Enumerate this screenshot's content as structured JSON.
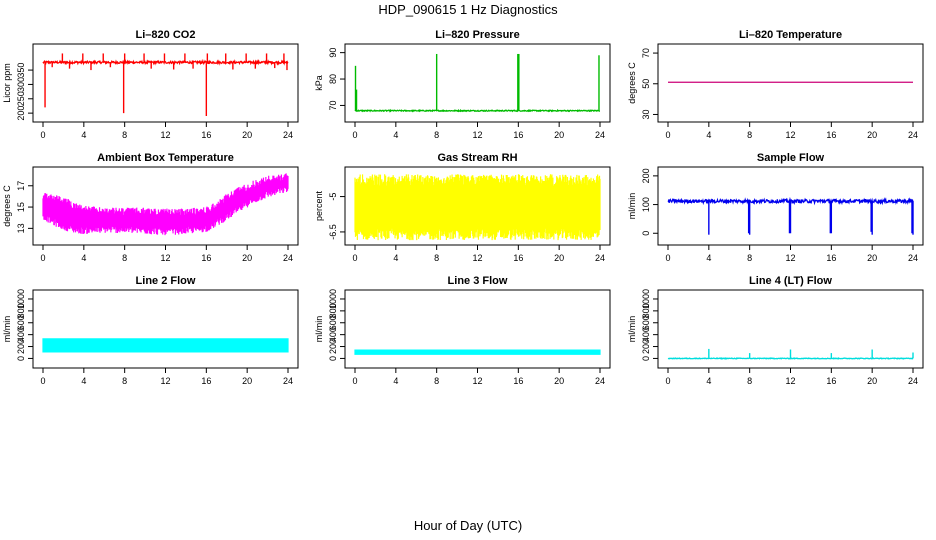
{
  "figure": {
    "title": "HDP_090615  1 Hz Diagnostics",
    "xlabel": "Hour of Day (UTC)"
  },
  "chart_data": [
    {
      "type": "line",
      "style": "spiky",
      "title": "Li–820 CO2",
      "ylabel": "Licor ppm",
      "color": "#ff0000",
      "xlim": [
        0,
        24
      ],
      "xticks": [
        0,
        4,
        8,
        12,
        16,
        20,
        24
      ],
      "ylim": [
        190,
        420
      ],
      "yticks": [
        200,
        250,
        300,
        350
      ],
      "series": [
        {
          "baseline": 377,
          "noise": 4,
          "x_range": [
            0,
            24
          ],
          "spikes": [
            {
              "x": 0.2,
              "y": 220
            },
            {
              "x": 0.9,
              "y": 360
            },
            {
              "x": 1.9,
              "y": 408
            },
            {
              "x": 2.6,
              "y": 355
            },
            {
              "x": 3.9,
              "y": 408
            },
            {
              "x": 4.7,
              "y": 350
            },
            {
              "x": 5.9,
              "y": 408
            },
            {
              "x": 6.6,
              "y": 360
            },
            {
              "x": 7.9,
              "y": 200
            },
            {
              "x": 8.0,
              "y": 408
            },
            {
              "x": 9.9,
              "y": 408
            },
            {
              "x": 10.6,
              "y": 355
            },
            {
              "x": 11.9,
              "y": 408
            },
            {
              "x": 12.8,
              "y": 352
            },
            {
              "x": 13.9,
              "y": 408
            },
            {
              "x": 14.7,
              "y": 355
            },
            {
              "x": 16.0,
              "y": 190
            },
            {
              "x": 16.1,
              "y": 408
            },
            {
              "x": 17.9,
              "y": 408
            },
            {
              "x": 18.6,
              "y": 352
            },
            {
              "x": 19.9,
              "y": 408
            },
            {
              "x": 20.8,
              "y": 355
            },
            {
              "x": 21.9,
              "y": 408
            },
            {
              "x": 22.7,
              "y": 357
            },
            {
              "x": 23.6,
              "y": 408
            },
            {
              "x": 23.9,
              "y": 350
            }
          ]
        }
      ]
    },
    {
      "type": "line",
      "style": "spiky",
      "title": "Li–820 Pressure",
      "ylabel": "kPa",
      "color": "#00bb00",
      "xlim": [
        0,
        24
      ],
      "xticks": [
        0,
        4,
        8,
        12,
        16,
        20,
        24
      ],
      "ylim": [
        66,
        91
      ],
      "yticks": [
        70,
        80,
        90
      ],
      "series": [
        {
          "baseline": 68.0,
          "noise": 0.2,
          "x_range": [
            0,
            24
          ],
          "spikes": [
            {
              "x": 0.05,
              "y": 85
            },
            {
              "x": 0.15,
              "y": 76
            },
            {
              "x": 8.0,
              "y": 89.5
            },
            {
              "x": 15.95,
              "y": 89.5
            },
            {
              "x": 16.05,
              "y": 89.5
            },
            {
              "x": 23.9,
              "y": 89
            }
          ]
        }
      ]
    },
    {
      "type": "line",
      "style": "flat",
      "title": "Li–820 Temperature",
      "ylabel": "degrees C",
      "color": "#cc0077",
      "xlim": [
        0,
        24
      ],
      "xticks": [
        0,
        4,
        8,
        12,
        16,
        20,
        24
      ],
      "ylim": [
        29,
        72
      ],
      "yticks": [
        30,
        50,
        70
      ],
      "series": [
        {
          "baseline": 51,
          "noise": 0,
          "x_range": [
            0,
            24
          ],
          "spikes": []
        }
      ]
    },
    {
      "type": "line",
      "style": "band",
      "title": "Ambient Box Temperature",
      "ylabel": "degrees C",
      "color": "#ff00ff",
      "xlim": [
        0,
        24
      ],
      "xticks": [
        0,
        4,
        8,
        12,
        16,
        20,
        24
      ],
      "ylim": [
        12.0,
        18.2
      ],
      "yticks": [
        13,
        15,
        17
      ],
      "series": [
        {
          "x_range": [
            0,
            24
          ],
          "x": [
            0,
            1,
            2,
            3,
            4,
            6,
            8,
            10,
            12,
            14,
            16,
            17,
            18,
            19,
            20,
            21,
            22,
            23,
            24
          ],
          "low": [
            14.2,
            13.6,
            13.2,
            12.9,
            12.8,
            12.9,
            12.9,
            12.8,
            12.7,
            12.8,
            13.0,
            13.5,
            14.1,
            14.7,
            15.3,
            15.8,
            16.2,
            16.5,
            16.7
          ],
          "high": [
            16.1,
            15.9,
            15.6,
            15.2,
            14.8,
            14.6,
            14.6,
            14.6,
            14.5,
            14.5,
            14.7,
            15.2,
            15.9,
            16.5,
            16.9,
            17.3,
            17.6,
            17.7,
            17.9
          ],
          "jitter": 0.35
        }
      ]
    },
    {
      "type": "line",
      "style": "band",
      "title": "Gas Stream RH",
      "ylabel": "percent",
      "color": "#ffff00",
      "xlim": [
        0,
        24
      ],
      "xticks": [
        0,
        4,
        8,
        12,
        16,
        20,
        24
      ],
      "ylim": [
        -6.8,
        -4.0
      ],
      "yticks": [
        -6.5,
        -5.0
      ],
      "series": [
        {
          "x_range": [
            0,
            24
          ],
          "x": [
            0,
            24
          ],
          "low": [
            -6.6,
            -6.6
          ],
          "high": [
            -4.3,
            -4.3
          ],
          "jitter": 0.25
        }
      ]
    },
    {
      "type": "line",
      "style": "spiky",
      "title": "Sample Flow",
      "ylabel": "ml/min",
      "color": "#0000ee",
      "xlim": [
        0,
        24
      ],
      "xticks": [
        0,
        4,
        8,
        12,
        16,
        20,
        24
      ],
      "ylim": [
        -20,
        210
      ],
      "yticks": [
        0,
        100,
        200
      ],
      "series": [
        {
          "baseline": 112,
          "noise": 6,
          "x_range": [
            0,
            24
          ],
          "spikes": [
            {
              "x": 4.0,
              "y": -5
            },
            {
              "x": 7.9,
              "y": 0
            },
            {
              "x": 8.0,
              "y": -5
            },
            {
              "x": 11.9,
              "y": 0
            },
            {
              "x": 12.0,
              "y": 0
            },
            {
              "x": 15.9,
              "y": 0
            },
            {
              "x": 16.0,
              "y": 0
            },
            {
              "x": 19.9,
              "y": 5
            },
            {
              "x": 20.0,
              "y": -5
            },
            {
              "x": 23.9,
              "y": 0
            },
            {
              "x": 24.0,
              "y": -5
            }
          ]
        }
      ]
    },
    {
      "type": "line",
      "style": "band",
      "title": "Line 2 Flow",
      "ylabel": "ml/min",
      "color": "#00ffff",
      "xlim": [
        0,
        24
      ],
      "xticks": [
        0,
        4,
        8,
        12,
        16,
        20,
        24
      ],
      "ylim": [
        -60,
        1050
      ],
      "yticks": [
        0,
        200,
        400,
        600,
        800,
        1000
      ],
      "series": [
        {
          "x_range": [
            0,
            24
          ],
          "x": [
            0,
            24
          ],
          "low": [
            100,
            100
          ],
          "high": [
            340,
            340
          ],
          "jitter": 0,
          "gaps": [
            4.0,
            8.0,
            12.0,
            16.0,
            20.0
          ]
        }
      ]
    },
    {
      "type": "line",
      "style": "band",
      "title": "Line 3 Flow",
      "ylabel": "ml/min",
      "color": "#00ffff",
      "xlim": [
        0,
        24
      ],
      "xticks": [
        0,
        4,
        8,
        12,
        16,
        20,
        24
      ],
      "ylim": [
        -60,
        1050
      ],
      "yticks": [
        0,
        200,
        400,
        600,
        800,
        1000
      ],
      "series": [
        {
          "x_range": [
            0,
            24
          ],
          "x": [
            0,
            24
          ],
          "low": [
            60,
            60
          ],
          "high": [
            150,
            150
          ],
          "jitter": 0,
          "gaps": [
            4.0,
            8.0,
            12.0,
            16.0,
            20.0
          ]
        }
      ]
    },
    {
      "type": "line",
      "style": "spiky",
      "title": "Line 4 (LT) Flow",
      "ylabel": "ml/min",
      "color": "#00dddd",
      "xlim": [
        0,
        24
      ],
      "xticks": [
        0,
        4,
        8,
        12,
        16,
        20,
        24
      ],
      "ylim": [
        -60,
        1050
      ],
      "yticks": [
        0,
        200,
        400,
        600,
        800,
        1000
      ],
      "series": [
        {
          "baseline": 0,
          "noise": 6,
          "x_range": [
            0,
            24
          ],
          "spikes": [
            {
              "x": 4.0,
              "y": 160
            },
            {
              "x": 8.0,
              "y": 90
            },
            {
              "x": 12.0,
              "y": 150
            },
            {
              "x": 16.0,
              "y": 90
            },
            {
              "x": 20.0,
              "y": 150
            },
            {
              "x": 24.0,
              "y": 100
            }
          ]
        }
      ]
    }
  ]
}
